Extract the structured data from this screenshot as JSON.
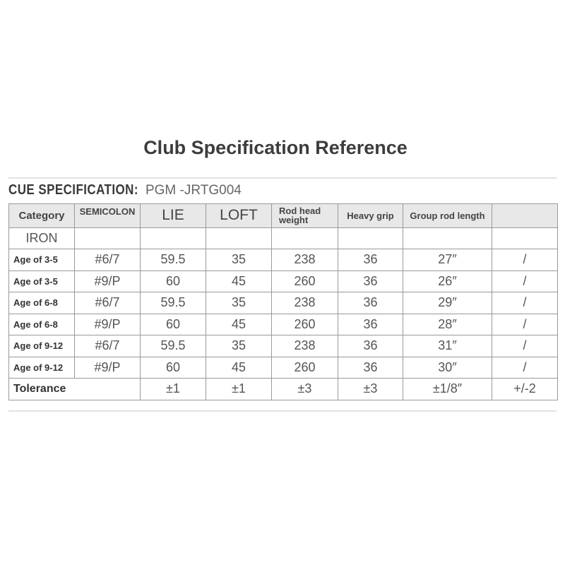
{
  "title": "Club Specification Reference",
  "spec": {
    "label": "CUE SPECIFICATION:",
    "model": "PGM -JRTG004"
  },
  "table": {
    "headers": [
      "Category",
      "SEMICOLON",
      "LIE",
      "LOFT",
      "Rod head weight",
      "Heavy grip",
      "Group rod length",
      ""
    ],
    "subheader": "IRON",
    "rows": [
      [
        "Age of 3-5",
        "#6/7",
        "59.5",
        "35",
        "238",
        "36",
        "27″",
        "/"
      ],
      [
        "Age of 3-5",
        "#9/P",
        "60",
        "45",
        "260",
        "36",
        "26″",
        "/"
      ],
      [
        "Age of 6-8",
        "#6/7",
        "59.5",
        "35",
        "238",
        "36",
        "29″",
        "/"
      ],
      [
        "Age of 6-8",
        "#9/P",
        "60",
        "45",
        "260",
        "36",
        "28″",
        "/"
      ],
      [
        "Age of 9-12",
        "#6/7",
        "59.5",
        "35",
        "238",
        "36",
        "31″",
        "/"
      ],
      [
        "Age of 9-12",
        "#9/P",
        "60",
        "45",
        "260",
        "36",
        "30″",
        "/"
      ]
    ],
    "tolerance": {
      "label": "Tolerance",
      "values": [
        "±1",
        "±1",
        "±3",
        "±3",
        "±1/8″",
        "+/-2"
      ]
    }
  }
}
